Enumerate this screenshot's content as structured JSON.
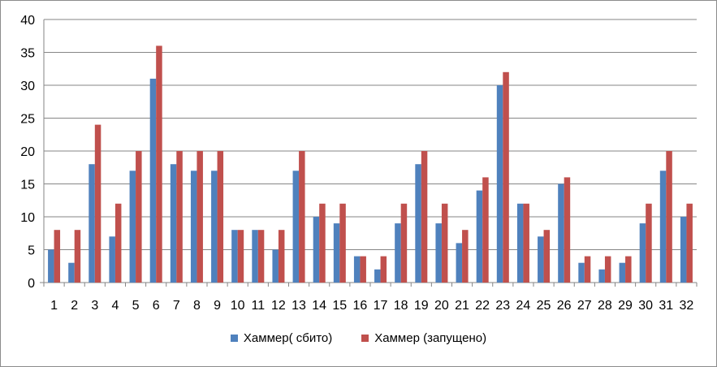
{
  "chart_data": {
    "type": "bar",
    "categories": [
      "1",
      "2",
      "3",
      "4",
      "5",
      "6",
      "7",
      "8",
      "9",
      "10",
      "11",
      "12",
      "13",
      "14",
      "15",
      "16",
      "17",
      "18",
      "19",
      "20",
      "21",
      "22",
      "23",
      "24",
      "25",
      "26",
      "27",
      "28",
      "29",
      "30",
      "31",
      "32"
    ],
    "series": [
      {
        "name": "Хаммер( сбито)",
        "color": "#4f81bd",
        "values": [
          5,
          3,
          18,
          7,
          17,
          31,
          18,
          17,
          17,
          8,
          8,
          5,
          17,
          10,
          9,
          4,
          2,
          9,
          18,
          9,
          6,
          14,
          30,
          12,
          7,
          15,
          3,
          2,
          3,
          9,
          17,
          10
        ]
      },
      {
        "name": "Хаммер (запущено)",
        "color": "#c0504d",
        "values": [
          8,
          8,
          24,
          12,
          20,
          36,
          20,
          20,
          20,
          8,
          8,
          8,
          20,
          12,
          12,
          4,
          4,
          12,
          20,
          12,
          8,
          16,
          32,
          12,
          8,
          16,
          4,
          4,
          4,
          12,
          20,
          12
        ]
      }
    ],
    "yticks": [
      0,
      5,
      10,
      15,
      20,
      25,
      30,
      35,
      40
    ],
    "ylim": [
      0,
      40
    ],
    "grid": true,
    "legend_position": "bottom"
  }
}
